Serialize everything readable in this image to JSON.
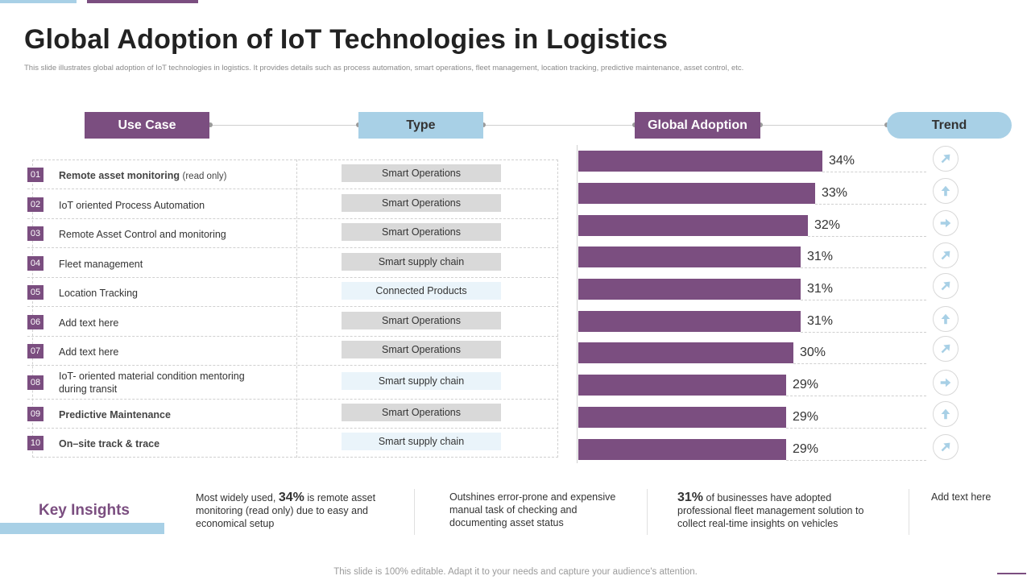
{
  "title": "Global Adoption of IoT Technologies in Logistics",
  "subtitle": "This slide illustrates global adoption of IoT  technologies in logistics. It provides details such as process automation, smart operations, fleet management, location tracking, predictive maintenance, asset control, etc.",
  "headers": {
    "use_case": "Use Case",
    "type": "Type",
    "global_adoption": "Global Adoption",
    "trend": "Trend"
  },
  "colors": {
    "accent_purple": "#7b4e80",
    "accent_blue": "#a8d0e6",
    "type_gray": "#d9d9d9",
    "type_light": "#eaf4fa"
  },
  "rows": [
    {
      "num": "01",
      "label": "Remote  asset  monitoring",
      "label_suffix": "(read only)",
      "bold": true,
      "type": "Smart Operations",
      "type_style": "gray",
      "adoption": "34%",
      "adoption_value": 34,
      "trend": "up-right-arrow-icon"
    },
    {
      "num": "02",
      "label": "IoT  oriented  Process Automation",
      "label_suffix": "",
      "bold": false,
      "type": "Smart Operations",
      "type_style": "gray",
      "adoption": "33%",
      "adoption_value": 33,
      "trend": "up-arrow-icon"
    },
    {
      "num": "03",
      "label": "Remote Asset Control and monitoring",
      "label_suffix": "",
      "bold": false,
      "type": "Smart Operations",
      "type_style": "gray",
      "adoption": "32%",
      "adoption_value": 32,
      "trend": "right-arrow-icon"
    },
    {
      "num": "04",
      "label": "Fleet management",
      "label_suffix": "",
      "bold": false,
      "type": "Smart supply chain",
      "type_style": "gray",
      "adoption": "31%",
      "adoption_value": 31,
      "trend": "up-right-arrow-icon"
    },
    {
      "num": "05",
      "label": "Location Tracking",
      "label_suffix": "",
      "bold": false,
      "type": "Connected Products",
      "type_style": "light",
      "adoption": "31%",
      "adoption_value": 31,
      "trend": "up-right-arrow-icon"
    },
    {
      "num": "06",
      "label": "Add text here",
      "label_suffix": "",
      "bold": false,
      "type": "Smart Operations",
      "type_style": "gray",
      "adoption": "31%",
      "adoption_value": 31,
      "trend": "up-arrow-icon"
    },
    {
      "num": "07",
      "label": "Add text here",
      "label_suffix": "",
      "bold": false,
      "type": "Smart Operations",
      "type_style": "gray",
      "adoption": "30%",
      "adoption_value": 30,
      "trend": "up-right-arrow-icon"
    },
    {
      "num": "08",
      "label": "IoT-  oriented  material   condition mentoring during transit",
      "label_suffix": "",
      "bold": false,
      "type": "Smart supply chain",
      "type_style": "light",
      "adoption": "29%",
      "adoption_value": 29,
      "trend": "right-arrow-icon"
    },
    {
      "num": "09",
      "label": "Predictive Maintenance",
      "label_suffix": "",
      "bold": true,
      "type": "Smart Operations",
      "type_style": "gray",
      "adoption": "29%",
      "adoption_value": 29,
      "trend": "up-arrow-icon"
    },
    {
      "num": "10",
      "label": "On–site track & trace",
      "label_suffix": "",
      "bold": true,
      "type": "Smart supply chain",
      "type_style": "light",
      "adoption": "29%",
      "adoption_value": 29,
      "trend": "up-right-arrow-icon"
    }
  ],
  "key_insights": {
    "label": "Key Insights",
    "items": [
      {
        "pre": "Most widely used, ",
        "highlight": "34%",
        "post": " is remote asset monitoring (read only) due to easy and economical setup"
      },
      {
        "pre": "Outshines error-prone  and expensive manual task of checking and documenting asset status",
        "highlight": "",
        "post": ""
      },
      {
        "pre": "",
        "highlight": "31%",
        "post": " of businesses have adopted professional fleet management solution to collect real-time insights on vehicles"
      },
      {
        "pre": "Add text here",
        "highlight": "",
        "post": ""
      }
    ]
  },
  "footer": "This slide is 100% editable. Adapt it to your needs and capture your audience's attention."
}
